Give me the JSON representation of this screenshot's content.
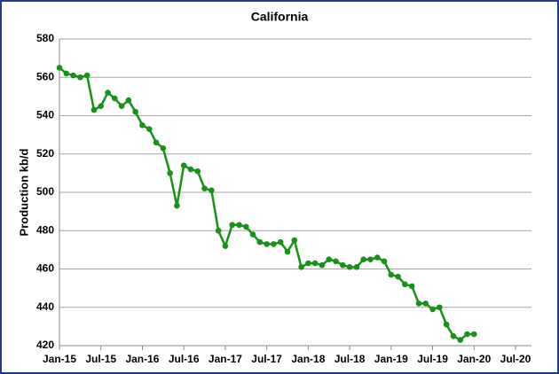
{
  "chart_data": {
    "type": "line",
    "title": "California",
    "y_label": "Production kb/d",
    "categories": [
      "Jan-15",
      null,
      null,
      null,
      null,
      null,
      "Jul-15",
      null,
      null,
      null,
      null,
      null,
      "Jan-16",
      null,
      null,
      null,
      null,
      null,
      "Jul-16",
      null,
      null,
      null,
      null,
      null,
      "Jan-17",
      null,
      null,
      null,
      null,
      null,
      "Jul-17",
      null,
      null,
      null,
      null,
      null,
      "Jan-18",
      null,
      null,
      null,
      null,
      null,
      "Jul-18",
      null,
      null,
      null,
      null,
      null,
      "Jan-19",
      null,
      null,
      null,
      null,
      null,
      "Jul-19",
      null,
      null,
      null,
      null,
      null,
      "Jan-20",
      null,
      null,
      null,
      null,
      null,
      "Jul-20"
    ],
    "series": [
      {
        "name": "California",
        "color": "#169216",
        "values": [
          565,
          562,
          561,
          560,
          561,
          543,
          545,
          552,
          549,
          545,
          548,
          542,
          535,
          533,
          526,
          523,
          510,
          493,
          514,
          512,
          511,
          502,
          501,
          480,
          472,
          483,
          483,
          482,
          478,
          474,
          473,
          473,
          474,
          469,
          475,
          461,
          463,
          463,
          462,
          465,
          464,
          462,
          461,
          461,
          465,
          465,
          466,
          464,
          457,
          456,
          452,
          451,
          442,
          442,
          439,
          440,
          431,
          425,
          423,
          426,
          426,
          null,
          null,
          null,
          null,
          null,
          null
        ]
      }
    ],
    "ylim": [
      420,
      580
    ],
    "yticks": [
      420,
      440,
      460,
      480,
      500,
      520,
      540,
      560,
      580
    ],
    "grid": true
  }
}
